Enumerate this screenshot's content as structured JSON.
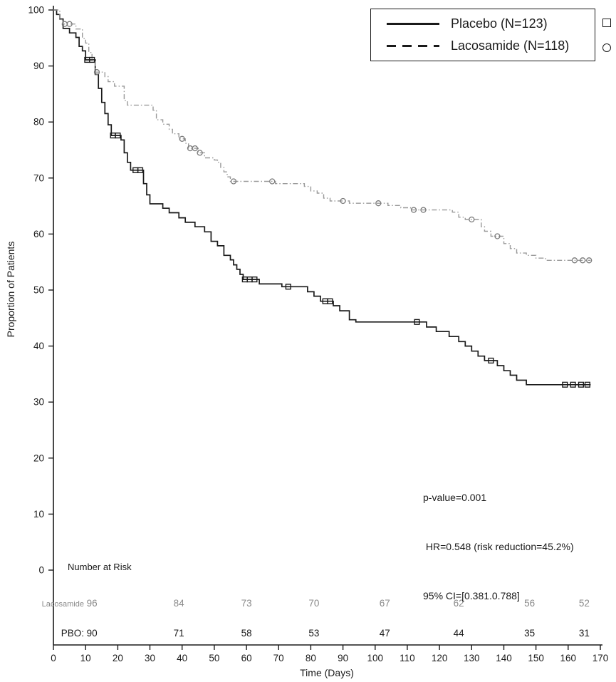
{
  "chart_data": {
    "type": "line",
    "subtype": "kaplan-meier-step",
    "title": "",
    "xlabel": "Time (Days)",
    "ylabel": "Proportion of Patients",
    "xlim": [
      0,
      170
    ],
    "ylim": [
      0,
      100
    ],
    "grid": false,
    "x_ticks": [
      0,
      10,
      20,
      30,
      40,
      50,
      60,
      70,
      80,
      90,
      100,
      110,
      120,
      130,
      140,
      150,
      160,
      170
    ],
    "y_ticks": [
      0,
      10,
      20,
      30,
      40,
      50,
      60,
      70,
      80,
      90,
      100
    ],
    "legend_position": "top-right",
    "series": [
      {
        "name": "Placebo (N=123)",
        "line": "solid",
        "color": "#1a1a1a",
        "marker": "square",
        "marker_color": "#1a1a1a",
        "steps": [
          [
            0,
            100
          ],
          [
            1,
            99.2
          ],
          [
            2,
            98.4
          ],
          [
            3,
            96.7
          ],
          [
            5,
            95.9
          ],
          [
            7,
            95.1
          ],
          [
            8,
            93.5
          ],
          [
            9,
            92.7
          ],
          [
            10,
            91.1
          ],
          [
            13,
            88.5
          ],
          [
            14,
            86.0
          ],
          [
            15,
            83.5
          ],
          [
            16,
            81.5
          ],
          [
            17,
            79.5
          ],
          [
            18,
            77.6
          ],
          [
            21,
            76.8
          ],
          [
            22,
            74.5
          ],
          [
            23,
            72.8
          ],
          [
            24,
            71.4
          ],
          [
            28,
            69.0
          ],
          [
            29,
            67.0
          ],
          [
            30,
            65.4
          ],
          [
            34,
            64.6
          ],
          [
            36,
            63.8
          ],
          [
            39,
            62.9
          ],
          [
            41,
            62.1
          ],
          [
            44,
            61.3
          ],
          [
            47,
            60.4
          ],
          [
            49,
            58.7
          ],
          [
            51,
            57.9
          ],
          [
            53,
            56.2
          ],
          [
            55,
            55.4
          ],
          [
            56,
            54.5
          ],
          [
            57,
            53.7
          ],
          [
            58,
            52.8
          ],
          [
            59,
            51.9
          ],
          [
            64,
            51.1
          ],
          [
            71,
            50.6
          ],
          [
            79,
            49.7
          ],
          [
            81,
            48.9
          ],
          [
            83,
            48.0
          ],
          [
            87,
            47.2
          ],
          [
            89,
            46.3
          ],
          [
            92,
            44.7
          ],
          [
            94,
            44.3
          ],
          [
            116,
            43.4
          ],
          [
            119,
            42.6
          ],
          [
            123,
            41.7
          ],
          [
            126,
            40.8
          ],
          [
            128,
            40.0
          ],
          [
            130,
            39.1
          ],
          [
            132,
            38.2
          ],
          [
            134,
            37.4
          ],
          [
            138,
            36.5
          ],
          [
            140,
            35.6
          ],
          [
            142,
            34.8
          ],
          [
            144,
            33.9
          ],
          [
            147,
            33.1
          ],
          [
            167,
            33.1
          ]
        ],
        "censored": [
          [
            10.5,
            91.1
          ],
          [
            12,
            91.1
          ],
          [
            18.5,
            77.6
          ],
          [
            20,
            77.6
          ],
          [
            25.5,
            71.4
          ],
          [
            27,
            71.4
          ],
          [
            59.5,
            51.9
          ],
          [
            61,
            51.9
          ],
          [
            62.5,
            51.9
          ],
          [
            73,
            50.6
          ],
          [
            84.5,
            48.0
          ],
          [
            86,
            48.0
          ],
          [
            113,
            44.3
          ],
          [
            136,
            37.4
          ],
          [
            159,
            33.1
          ],
          [
            161.5,
            33.1
          ],
          [
            164,
            33.1
          ],
          [
            166,
            33.1
          ]
        ]
      },
      {
        "name": "Lacosamide (N=118)",
        "line": "dashed",
        "color": "#9a9a9a",
        "marker": "circle",
        "marker_color": "#7a7a7a",
        "steps": [
          [
            0,
            100
          ],
          [
            2,
            98.3
          ],
          [
            3,
            97.5
          ],
          [
            7,
            96.6
          ],
          [
            9,
            94.9
          ],
          [
            10,
            94.1
          ],
          [
            11,
            92.4
          ],
          [
            12,
            91.0
          ],
          [
            13,
            88.9
          ],
          [
            16,
            88.1
          ],
          [
            17,
            87.2
          ],
          [
            19,
            86.4
          ],
          [
            22,
            83.8
          ],
          [
            23,
            83.0
          ],
          [
            31,
            82.1
          ],
          [
            32,
            80.4
          ],
          [
            34,
            79.6
          ],
          [
            36,
            78.7
          ],
          [
            37,
            77.9
          ],
          [
            39,
            77.0
          ],
          [
            41,
            76.2
          ],
          [
            42,
            75.3
          ],
          [
            45,
            74.5
          ],
          [
            47,
            73.6
          ],
          [
            50,
            73.2
          ],
          [
            51,
            72.8
          ],
          [
            52,
            71.9
          ],
          [
            53,
            71.1
          ],
          [
            54,
            70.2
          ],
          [
            55,
            69.4
          ],
          [
            69,
            69.0
          ],
          [
            78,
            68.5
          ],
          [
            80,
            67.7
          ],
          [
            82,
            67.3
          ],
          [
            84,
            66.4
          ],
          [
            86,
            65.9
          ],
          [
            92,
            65.5
          ],
          [
            104,
            65.1
          ],
          [
            108,
            64.7
          ],
          [
            111,
            64.3
          ],
          [
            124,
            63.9
          ],
          [
            126,
            63.0
          ],
          [
            128,
            62.6
          ],
          [
            133,
            61.3
          ],
          [
            134,
            60.5
          ],
          [
            136,
            59.6
          ],
          [
            140,
            58.3
          ],
          [
            142,
            57.4
          ],
          [
            144,
            56.6
          ],
          [
            147,
            56.2
          ],
          [
            150,
            55.7
          ],
          [
            153,
            55.3
          ],
          [
            167,
            55.3
          ]
        ],
        "censored": [
          [
            3.5,
            97.5
          ],
          [
            5,
            97.5
          ],
          [
            13.5,
            88.9
          ],
          [
            40,
            77.0
          ],
          [
            42.5,
            75.3
          ],
          [
            44,
            75.3
          ],
          [
            45.5,
            74.5
          ],
          [
            56,
            69.4
          ],
          [
            68,
            69.4
          ],
          [
            90,
            65.9
          ],
          [
            101,
            65.5
          ],
          [
            112,
            64.3
          ],
          [
            115,
            64.3
          ],
          [
            130,
            62.6
          ],
          [
            138,
            59.6
          ],
          [
            162,
            55.3
          ],
          [
            164.5,
            55.3
          ],
          [
            166.5,
            55.3
          ]
        ]
      }
    ],
    "legend": {
      "entries": [
        {
          "label": "Placebo (N=123)",
          "line": "solid",
          "marker": "square"
        },
        {
          "label": "Lacosamide (N=118)",
          "line": "dashed",
          "marker": "circle"
        }
      ]
    },
    "annotations": [
      "p-value=0.001",
      " HR=0.548 (risk reduction=45.2%)",
      "95% CI=[0.381.0.788]"
    ],
    "risk_table": {
      "title": "Number at Risk",
      "column_days": [
        12,
        39,
        60,
        81,
        103,
        126,
        148,
        165
      ],
      "rows": [
        {
          "label": "Lacosamide",
          "color": "#8a8a8a",
          "values": [
            96,
            84,
            73,
            70,
            67,
            62,
            56,
            52
          ]
        },
        {
          "label": "PBO:",
          "color": "#1a1a1a",
          "values": [
            90,
            71,
            58,
            53,
            47,
            44,
            35,
            31
          ]
        }
      ]
    }
  }
}
